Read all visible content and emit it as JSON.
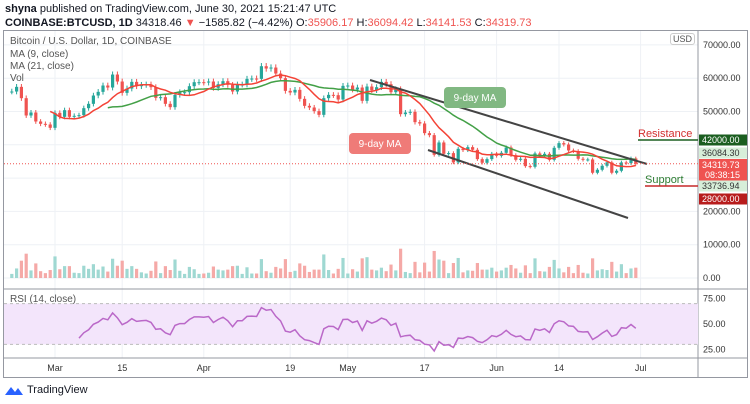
{
  "header": {
    "publisher": "shyna",
    "published_text": "published on TradingView.com, June 30, 2021 15:21:47 UTC",
    "symbol": "COINBASE:BTCUSD, 1D",
    "last": "34318.46",
    "change": "−1585.82 (−4.42%)",
    "open_label": "O:",
    "open": "35906.17",
    "high_label": "H:",
    "high": "36094.42",
    "low_label": "L:",
    "low": "34141.53",
    "close_label": "C:",
    "close": "34319.73"
  },
  "legend": {
    "title": "Bitcoin / U.S. Dollar, 1D, COINBASE",
    "ma9": "MA (9, close)",
    "ma21": "MA (21, close)",
    "vol": "Vol",
    "rsi": "RSI (14, close)"
  },
  "currency": "USD",
  "annotations": {
    "green_bubble": "9-day MA",
    "red_bubble": "9-day MA",
    "resistance": "Resistance",
    "support": "Support"
  },
  "price_tags": {
    "resistance_level": "42000.00",
    "high_tag": "36084.30",
    "last_price": "34319.73",
    "countdown": "08:38:15",
    "low_tag": "33736.94",
    "support_level": "28000.00"
  },
  "brand": "TradingView",
  "colors": {
    "up": "#26a69a",
    "down": "#ef5350",
    "ma9": "#f44336",
    "ma21": "#43a047",
    "rsi": "#ba68c8",
    "resistance": "#1b5e20",
    "support": "#b71c1c"
  },
  "chart_data": {
    "type": "candlestick",
    "start_date": "2021-02-20",
    "interval": "1D",
    "closes": [
      56000,
      57400,
      54000,
      48800,
      49700,
      47000,
      46300,
      46100,
      45100,
      49600,
      48400,
      50400,
      48400,
      48700,
      48900,
      51000,
      52300,
      54800,
      55900,
      57800,
      57200,
      61100,
      59000,
      55600,
      56900,
      58900,
      57600,
      58000,
      58100,
      57300,
      54100,
      54300,
      52300,
      51300,
      55000,
      55800,
      55800,
      57600,
      58800,
      58800,
      58700,
      59000,
      57100,
      58200,
      59100,
      58000,
      56000,
      58100,
      58100,
      59800,
      59900,
      59800,
      63600,
      62900,
      63200,
      61400,
      60000,
      56200,
      55700,
      56500,
      53800,
      51700,
      51200,
      50100,
      49000,
      54000,
      55000,
      54900,
      53600,
      57700,
      57800,
      56600,
      57200,
      53200,
      57500,
      56400,
      57300,
      58900,
      58200,
      55800,
      56700,
      49200,
      49700,
      49900,
      46800,
      46400,
      43500,
      42900,
      37000,
      40700,
      37300,
      37500,
      34700,
      38800,
      38400,
      39300,
      38500,
      35700,
      34600,
      35700,
      37300,
      36700,
      37600,
      39200,
      36900,
      35500,
      35800,
      33600,
      33400,
      37400,
      36700,
      37300,
      35500,
      39100,
      40500,
      40100,
      38300,
      38100,
      35800,
      35500,
      35600,
      31600,
      32500,
      33700,
      34700,
      31600,
      32200,
      34700,
      34500,
      35900,
      34300
    ],
    "price_axis": {
      "ticks": [
        "70000.00",
        "60000.00",
        "50000.00",
        "20000.00",
        "10000.00",
        "0.00"
      ],
      "values": [
        70000,
        60000,
        50000,
        20000,
        10000,
        0
      ]
    },
    "rsi_axis": {
      "ticks": [
        "75.00",
        "50.00",
        "25.00"
      ],
      "values": [
        75,
        50,
        25
      ],
      "band": [
        30,
        70
      ]
    },
    "time_axis": [
      {
        "label": "Mar",
        "date": "2021-03-01"
      },
      {
        "label": "15",
        "date": "2021-03-15"
      },
      {
        "label": "Apr",
        "date": "2021-04-01"
      },
      {
        "label": "19",
        "date": "2021-04-19"
      },
      {
        "label": "May",
        "date": "2021-05-01"
      },
      {
        "label": "17",
        "date": "2021-05-17"
      },
      {
        "label": "Jun",
        "date": "2021-06-01"
      },
      {
        "label": "14",
        "date": "2021-06-14"
      },
      {
        "label": "Jul",
        "date": "2021-07-01"
      }
    ],
    "indicators": [
      "MA 9",
      "MA 21",
      "Volume",
      "RSI 14"
    ],
    "grid": true
  }
}
